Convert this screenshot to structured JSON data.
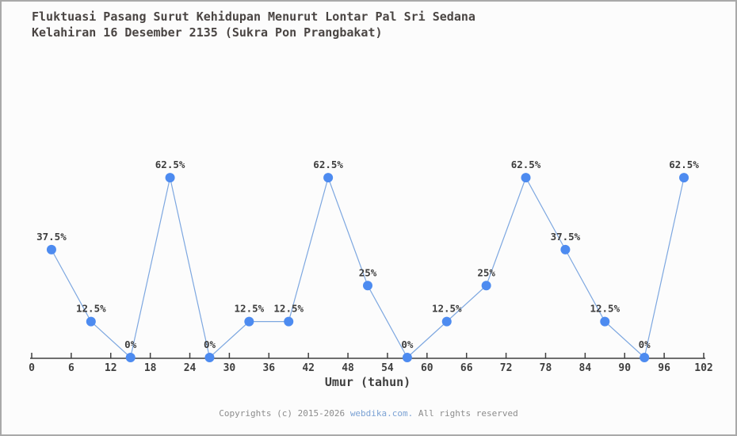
{
  "header": {
    "title_line1": "Fluktuasi Pasang Surut Kehidupan Menurut Lontar Pal Sri Sedana",
    "title_line2": "Kelahiran 16 Desember 2135 (Sukra Pon Prangbakat)"
  },
  "footer": {
    "prefix": "Copyrights (c) 2015-2026 ",
    "link": "webdika.com.",
    "suffix": " All rights reserved"
  },
  "colors": {
    "background": "#fcfcfc",
    "frame_border": "#a9a9a9",
    "title_text": "#4a4543",
    "axis": "#3f3f3f",
    "tick_label": "#3f3f3f",
    "data_label": "#3d3d3d",
    "line": "#7da7e0",
    "marker": "#4d8bf0",
    "footer_text": "#8c8c8c",
    "footer_link": "#7ba2d4"
  },
  "chart_data": {
    "type": "line",
    "title": "Fluktuasi Pasang Surut Kehidupan Menurut Lontar Pal Sri Sedana Kelahiran 16 Desember 2135 (Sukra Pon Prangbakat)",
    "x": [
      3,
      9,
      15,
      21,
      27,
      33,
      39,
      45,
      51,
      57,
      63,
      69,
      75,
      81,
      87,
      93,
      99
    ],
    "values": [
      37.5,
      12.5,
      0,
      62.5,
      0,
      12.5,
      12.5,
      62.5,
      25,
      0,
      12.5,
      25,
      62.5,
      37.5,
      12.5,
      0,
      62.5
    ],
    "point_labels": [
      "37.5%",
      "12.5%",
      "0%",
      "62.5%",
      "0%",
      "12.5%",
      "12.5%",
      "62.5%",
      "25%",
      "0%",
      "12.5%",
      "25%",
      "62.5%",
      "37.5%",
      "12.5%",
      "0%",
      "62.5%"
    ],
    "xlabel": "Umur (tahun)",
    "ylabel": "",
    "x_ticks": [
      0,
      6,
      12,
      18,
      24,
      30,
      36,
      42,
      48,
      54,
      60,
      66,
      72,
      78,
      84,
      90,
      96,
      102
    ],
    "xlim": [
      0,
      102
    ],
    "ylim": [
      0,
      100
    ],
    "grid": false,
    "legend": false,
    "y_axis_visible": false,
    "marker_style": "circle"
  }
}
